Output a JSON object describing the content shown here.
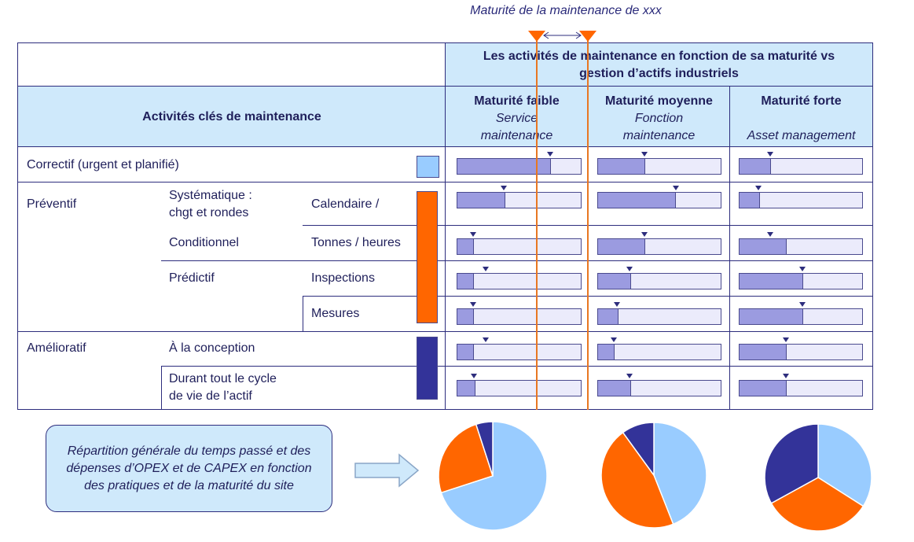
{
  "title": "Maturité de la maintenance de xxx",
  "colors": {
    "header_bg": "#cfe9fb",
    "bar_fill": "#9b9be0",
    "bar_bg": "#ebebfb",
    "orange": "#ff6600",
    "light_blue": "#99ccff",
    "navy": "#333399",
    "marker_line": "#e87722"
  },
  "table": {
    "top_header": "Les activités de maintenance en fonction de sa maturité vs gestion d’actifs industriels",
    "left_header": "Activités clés de maintenance",
    "columns": [
      {
        "title": "Maturité faible",
        "subtitle_1": "Service",
        "subtitle_2": "maintenance"
      },
      {
        "title": "Maturité moyenne",
        "subtitle_1": "Fonction",
        "subtitle_2": "maintenance"
      },
      {
        "title": "Maturité forte",
        "subtitle_1": "",
        "subtitle_2": "Asset management"
      }
    ],
    "categories": {
      "correctif": "Correctif (urgent et planifié)",
      "preventif": "Préventif",
      "ameliortatif": "Amélioratif"
    },
    "subcategories": {
      "systematique_1": "Systématique :",
      "systematique_2": "chgt et rondes",
      "conditionnel": "Conditionnel",
      "predictif": "Prédictif",
      "conception": "À la conception",
      "cycle_1": "Durant tout le cycle",
      "cycle_2": "de vie de l’actif"
    },
    "details": {
      "calendaire": "Calendaire /",
      "tonnes": "Tonnes / heures",
      "inspections": "Inspections",
      "mesures": "Mesures"
    }
  },
  "chart_data": {
    "type": "bar",
    "title": "Les activités de maintenance en fonction de sa maturité vs gestion d’actifs industriels",
    "categories": [
      "Correctif (urgent et planifié)",
      "Calendaire /",
      "Tonnes / heures",
      "Inspections",
      "Mesures",
      "À la conception",
      "Durant tout le cycle de vie de l’actif"
    ],
    "unit": "fraction of bar",
    "series": [
      {
        "name": "Maturité faible",
        "values": [
          0.75,
          0.38,
          0.13,
          0.13,
          0.13,
          0.13,
          0.14
        ],
        "markers": [
          0.75,
          0.38,
          0.13,
          0.23,
          0.13,
          0.23,
          0.14
        ]
      },
      {
        "name": "Maturité moyenne",
        "values": [
          0.38,
          0.63,
          0.38,
          0.26,
          0.16,
          0.13,
          0.26
        ],
        "markers": [
          0.38,
          0.63,
          0.38,
          0.26,
          0.16,
          0.13,
          0.26
        ]
      },
      {
        "name": "Maturité forte",
        "values": [
          0.25,
          0.16,
          0.38,
          0.51,
          0.51,
          0.38,
          0.38
        ],
        "markers": [
          0.25,
          0.16,
          0.25,
          0.51,
          0.51,
          0.38,
          0.38
        ]
      }
    ]
  },
  "pies": [
    {
      "label": "Maturité faible",
      "slices": [
        {
          "name": "correctif",
          "value": 0.7,
          "color": "#99ccff"
        },
        {
          "name": "préventif",
          "value": 0.25,
          "color": "#ff6600"
        },
        {
          "name": "amélioratif",
          "value": 0.05,
          "color": "#333399"
        }
      ]
    },
    {
      "label": "Maturité moyenne",
      "slices": [
        {
          "name": "correctif",
          "value": 0.44,
          "color": "#99ccff"
        },
        {
          "name": "préventif",
          "value": 0.46,
          "color": "#ff6600"
        },
        {
          "name": "amélioratif",
          "value": 0.1,
          "color": "#333399"
        }
      ]
    },
    {
      "label": "Maturité forte",
      "slices": [
        {
          "name": "correctif",
          "value": 0.34,
          "color": "#99ccff"
        },
        {
          "name": "préventif",
          "value": 0.33,
          "color": "#ff6600"
        },
        {
          "name": "amélioratif",
          "value": 0.33,
          "color": "#333399"
        }
      ]
    }
  ],
  "note": "Répartition générale du temps passé et des dépenses d’OPEX et de CAPEX en fonction des pratiques et de la maturité du site"
}
